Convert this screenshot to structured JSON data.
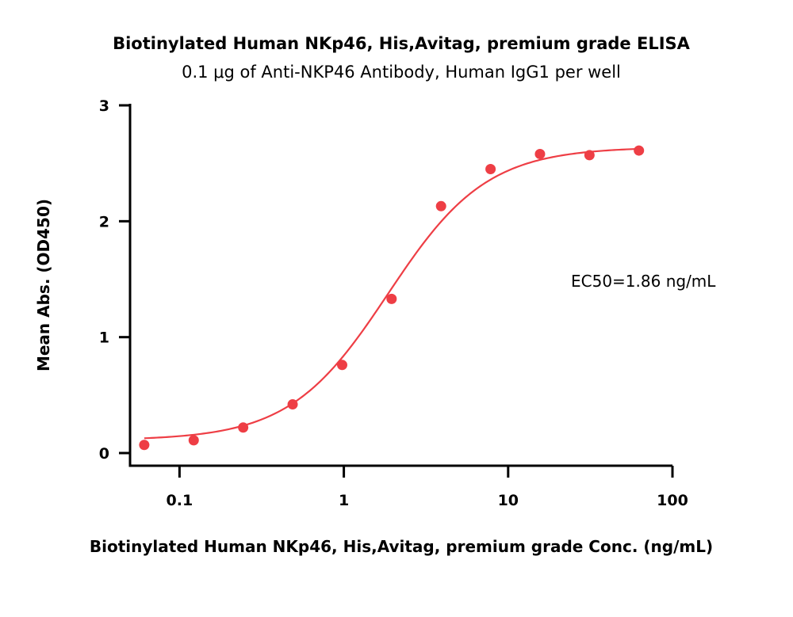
{
  "chart_data": {
    "type": "scatter",
    "title": "Biotinylated Human NKp46, His,Avitag, premium grade ELISA",
    "subtitle": "0.1 μg of Anti-NKP46 Antibody, Human IgG1 per well",
    "xlabel": "Biotinylated Human NKp46, His,Avitag, premium grade Conc. (ng/mL)",
    "ylabel": "Mean Abs. (OD450)",
    "x_scale": "log",
    "xlim": [
      0.05,
      100
    ],
    "ylim": [
      0,
      3
    ],
    "x_ticks": [
      {
        "value": 0.1,
        "label": "0.1"
      },
      {
        "value": 1,
        "label": "1"
      },
      {
        "value": 10,
        "label": "10"
      },
      {
        "value": 100,
        "label": "100"
      }
    ],
    "y_ticks": [
      {
        "value": 0,
        "label": "0"
      },
      {
        "value": 1,
        "label": "1"
      },
      {
        "value": 2,
        "label": "2"
      },
      {
        "value": 3,
        "label": "3"
      }
    ],
    "series": [
      {
        "x": [
          0.061,
          0.122,
          0.244,
          0.488,
          0.977,
          1.953,
          3.906,
          7.813,
          15.625,
          31.25,
          62.5
        ],
        "y": [
          0.07,
          0.11,
          0.22,
          0.42,
          0.76,
          1.33,
          2.13,
          2.45,
          2.58,
          2.57,
          2.61
        ],
        "color": "#ee3e45"
      }
    ],
    "fit": {
      "model": "4PL",
      "bottom": 0.11,
      "top": 2.64,
      "ec50": 1.86,
      "hill": 1.45,
      "color": "#ee3e45"
    },
    "annotation": "EC50=1.86 ng/mL",
    "grid": false,
    "legend": "none"
  }
}
